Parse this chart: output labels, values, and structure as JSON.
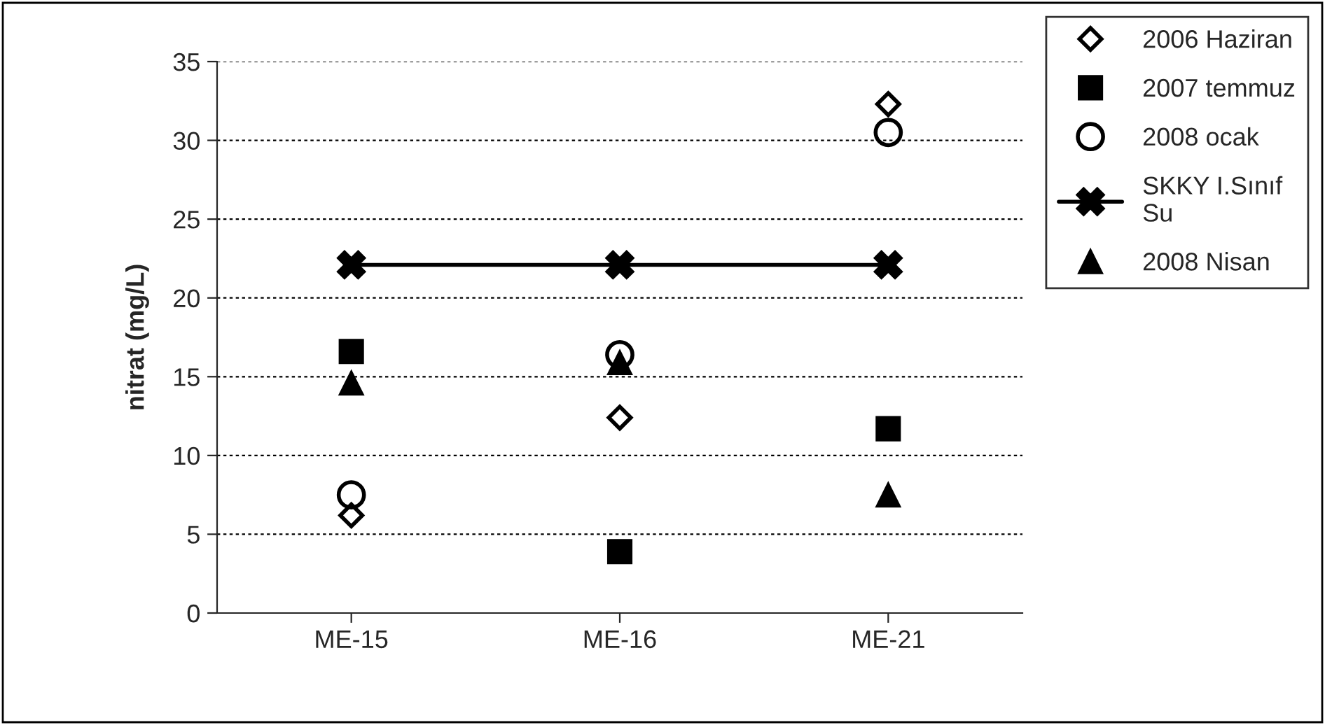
{
  "chart_data": {
    "type": "scatter",
    "ylabel": "nitrat (mg/L)",
    "categories": [
      "ME-15",
      "ME-16",
      "ME-21"
    ],
    "series": [
      {
        "name": "2006 Haziran",
        "color": "#000000",
        "marker": "diamond",
        "values": [
          6.2,
          12.4,
          32.3
        ]
      },
      {
        "name": "2007 temmuz",
        "color": "#000000",
        "marker": "square",
        "values": [
          16.6,
          3.9,
          11.7
        ]
      },
      {
        "name": "2008 ocak",
        "color": "#000000",
        "marker": "circle",
        "values": [
          7.5,
          16.4,
          30.5
        ]
      },
      {
        "name": "SKKY I.Sınıf\nSu",
        "color": "#000000",
        "type": "line",
        "marker": "cross",
        "line_style": "solid",
        "values": [
          22.1,
          22.1,
          22.1
        ]
      },
      {
        "name": "2008 Nisan",
        "color": "#000000",
        "marker": "triangle",
        "values": [
          14.6,
          15.9,
          7.5
        ]
      }
    ],
    "ylim": [
      0,
      35
    ],
    "yticks": [
      0,
      5,
      10,
      15,
      20,
      25,
      30,
      35
    ],
    "grid": "y",
    "legend": "top right"
  }
}
